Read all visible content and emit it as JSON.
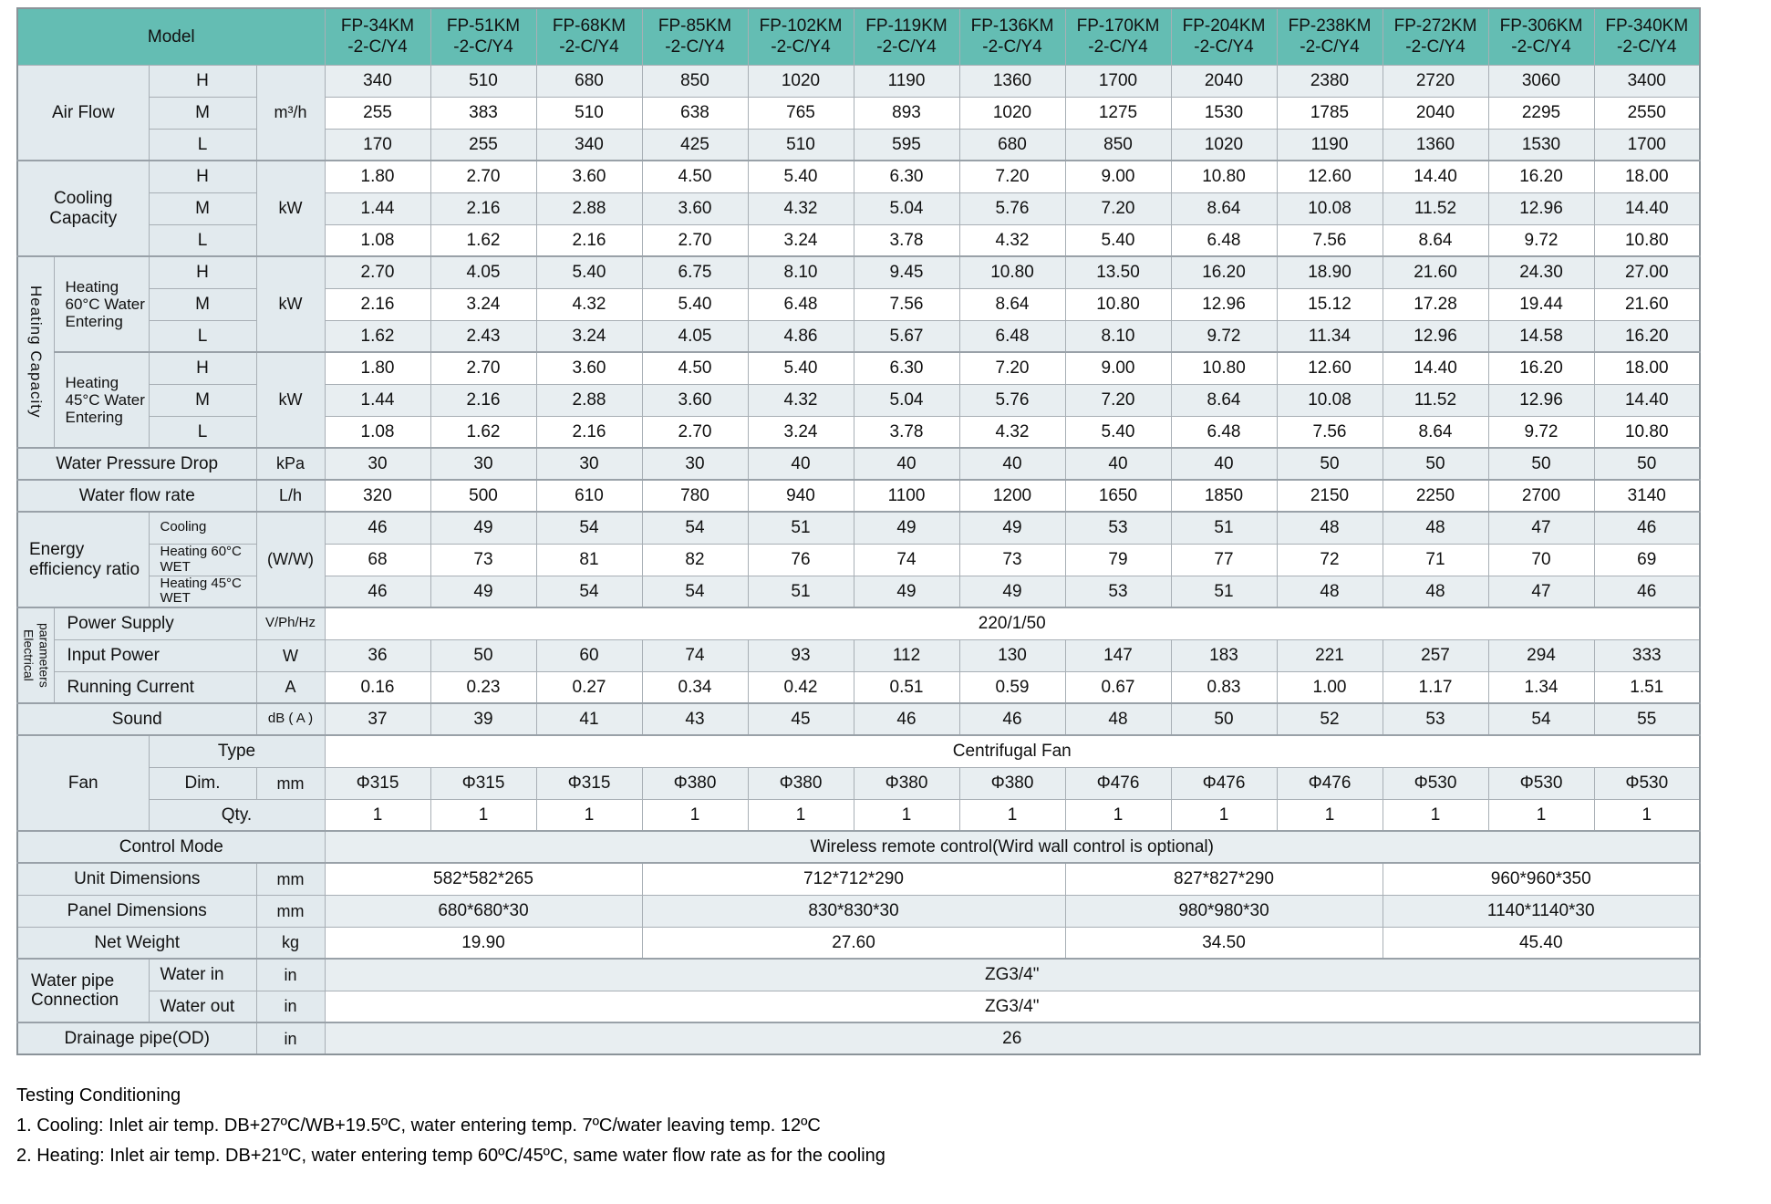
{
  "table": {
    "hml": [
      "H",
      "M",
      "L"
    ],
    "header": {
      "model_label": "Model",
      "model_suffix": "-2-C/Y4",
      "models": [
        "FP-34KM",
        "FP-51KM",
        "FP-68KM",
        "FP-85KM",
        "FP-102KM",
        "FP-119KM",
        "FP-136KM",
        "FP-170KM",
        "FP-204KM",
        "FP-238KM",
        "FP-272KM",
        "FP-306KM",
        "FP-340KM"
      ]
    },
    "air_flow": {
      "label": "Air Flow",
      "unit": "m³/h",
      "rows": {
        "H": [
          "340",
          "510",
          "680",
          "850",
          "1020",
          "1190",
          "1360",
          "1700",
          "2040",
          "2380",
          "2720",
          "3060",
          "3400"
        ],
        "M": [
          "255",
          "383",
          "510",
          "638",
          "765",
          "893",
          "1020",
          "1275",
          "1530",
          "1785",
          "2040",
          "2295",
          "2550"
        ],
        "L": [
          "170",
          "255",
          "340",
          "425",
          "510",
          "595",
          "680",
          "850",
          "1020",
          "1190",
          "1360",
          "1530",
          "1700"
        ]
      }
    },
    "cooling_capacity": {
      "label": "Cooling Capacity",
      "unit": "kW",
      "rows": {
        "H": [
          "1.80",
          "2.70",
          "3.60",
          "4.50",
          "5.40",
          "6.30",
          "7.20",
          "9.00",
          "10.80",
          "12.60",
          "14.40",
          "16.20",
          "18.00"
        ],
        "M": [
          "1.44",
          "2.16",
          "2.88",
          "3.60",
          "4.32",
          "5.04",
          "5.76",
          "7.20",
          "8.64",
          "10.08",
          "11.52",
          "12.96",
          "14.40"
        ],
        "L": [
          "1.08",
          "1.62",
          "2.16",
          "2.70",
          "3.24",
          "3.78",
          "4.32",
          "5.40",
          "6.48",
          "7.56",
          "8.64",
          "9.72",
          "10.80"
        ]
      }
    },
    "heating_capacity": {
      "label": "Heating Capacity",
      "h60": {
        "label": "Heating 60°C Water Entering",
        "unit": "kW",
        "rows": {
          "H": [
            "2.70",
            "4.05",
            "5.40",
            "6.75",
            "8.10",
            "9.45",
            "10.80",
            "13.50",
            "16.20",
            "18.90",
            "21.60",
            "24.30",
            "27.00"
          ],
          "M": [
            "2.16",
            "3.24",
            "4.32",
            "5.40",
            "6.48",
            "7.56",
            "8.64",
            "10.80",
            "12.96",
            "15.12",
            "17.28",
            "19.44",
            "21.60"
          ],
          "L": [
            "1.62",
            "2.43",
            "3.24",
            "4.05",
            "4.86",
            "5.67",
            "6.48",
            "8.10",
            "9.72",
            "11.34",
            "12.96",
            "14.58",
            "16.20"
          ]
        }
      },
      "h45": {
        "label": "Heating 45°C Water Entering",
        "unit": "kW",
        "rows": {
          "H": [
            "1.80",
            "2.70",
            "3.60",
            "4.50",
            "5.40",
            "6.30",
            "7.20",
            "9.00",
            "10.80",
            "12.60",
            "14.40",
            "16.20",
            "18.00"
          ],
          "M": [
            "1.44",
            "2.16",
            "2.88",
            "3.60",
            "4.32",
            "5.04",
            "5.76",
            "7.20",
            "8.64",
            "10.08",
            "11.52",
            "12.96",
            "14.40"
          ],
          "L": [
            "1.08",
            "1.62",
            "2.16",
            "2.70",
            "3.24",
            "3.78",
            "4.32",
            "5.40",
            "6.48",
            "7.56",
            "8.64",
            "9.72",
            "10.80"
          ]
        }
      }
    },
    "water_pressure_drop": {
      "label": "Water Pressure Drop",
      "unit": "kPa",
      "values": [
        "30",
        "30",
        "30",
        "30",
        "40",
        "40",
        "40",
        "40",
        "40",
        "50",
        "50",
        "50",
        "50"
      ]
    },
    "water_flow_rate": {
      "label": "Water flow rate",
      "unit": "L/h",
      "values": [
        "320",
        "500",
        "610",
        "780",
        "940",
        "1100",
        "1200",
        "1650",
        "1850",
        "2150",
        "2250",
        "2700",
        "3140"
      ]
    },
    "energy_efficiency_ratio": {
      "label": "Energy efficiency ratio",
      "unit": "(W/W)",
      "cooling": {
        "label": "Cooling",
        "values": [
          "46",
          "49",
          "54",
          "54",
          "51",
          "49",
          "49",
          "53",
          "51",
          "48",
          "48",
          "47",
          "46"
        ]
      },
      "heating60": {
        "label": "Heating 60°C WET",
        "values": [
          "68",
          "73",
          "81",
          "82",
          "76",
          "74",
          "73",
          "79",
          "77",
          "72",
          "71",
          "70",
          "69"
        ]
      },
      "heating45": {
        "label": "Heating 45°C WET",
        "values": [
          "46",
          "49",
          "54",
          "54",
          "51",
          "49",
          "49",
          "53",
          "51",
          "48",
          "48",
          "47",
          "46"
        ]
      }
    },
    "electrical": {
      "label": "Electrical parameters",
      "power_supply": {
        "label": "Power Supply",
        "unit": "V/Ph/Hz",
        "value": "220/1/50"
      },
      "input_power": {
        "label": "Input Power",
        "unit": "W",
        "values": [
          "36",
          "50",
          "60",
          "74",
          "93",
          "112",
          "130",
          "147",
          "183",
          "221",
          "257",
          "294",
          "333"
        ]
      },
      "running_current": {
        "label": "Running Current",
        "unit": "A",
        "values": [
          "0.16",
          "0.23",
          "0.27",
          "0.34",
          "0.42",
          "0.51",
          "0.59",
          "0.67",
          "0.83",
          "1.00",
          "1.17",
          "1.34",
          "1.51"
        ]
      }
    },
    "sound": {
      "label": "Sound",
      "unit": "dB ( A )",
      "values": [
        "37",
        "39",
        "41",
        "43",
        "45",
        "46",
        "46",
        "48",
        "50",
        "52",
        "53",
        "54",
        "55"
      ]
    },
    "fan": {
      "label": "Fan",
      "type": {
        "label": "Type",
        "value": "Centrifugal Fan"
      },
      "dim": {
        "label": "Dim.",
        "unit": "mm",
        "values": [
          "Φ315",
          "Φ315",
          "Φ315",
          "Φ380",
          "Φ380",
          "Φ380",
          "Φ380",
          "Φ476",
          "Φ476",
          "Φ476",
          "Φ530",
          "Φ530",
          "Φ530"
        ]
      },
      "qty": {
        "label": "Qty.",
        "values": [
          "1",
          "1",
          "1",
          "1",
          "1",
          "1",
          "1",
          "1",
          "1",
          "1",
          "1",
          "1",
          "1"
        ]
      }
    },
    "control_mode": {
      "label": "Control Mode",
      "value": "Wireless remote control(Wird wall control is optional)"
    },
    "unit_dimensions": {
      "label": "Unit Dimensions",
      "unit": "mm",
      "values": [
        "582*582*265",
        "712*712*290",
        "827*827*290",
        "960*960*350"
      ],
      "spans": [
        3,
        4,
        3,
        3
      ]
    },
    "panel_dimensions": {
      "label": "Panel Dimensions",
      "unit": "mm",
      "values": [
        "680*680*30",
        "830*830*30",
        "980*980*30",
        "1140*1140*30"
      ],
      "spans": [
        3,
        4,
        3,
        3
      ]
    },
    "net_weight": {
      "label": "Net Weight",
      "unit": "kg",
      "values": [
        "19.90",
        "27.60",
        "34.50",
        "45.40"
      ],
      "spans": [
        3,
        4,
        3,
        3
      ]
    },
    "water_pipe": {
      "label": "Water pipe Connection",
      "water_in": {
        "label": "Water in",
        "unit": "in",
        "value": "ZG3/4\""
      },
      "water_out": {
        "label": "Water out",
        "unit": "in",
        "value": "ZG3/4\""
      }
    },
    "drainage": {
      "label": "Drainage pipe(OD)",
      "unit": "in",
      "value": "26"
    }
  },
  "footer": {
    "title": "Testing Conditioning",
    "notes": [
      "1. Cooling: Inlet air temp. DB+27ºC/WB+19.5ºC, water entering temp. 7ºC/water leaving temp. 12ºC",
      "2. Heating: Inlet air temp. DB+21ºC, water entering temp 60ºC/45ºC, same water flow rate as for the cooling"
    ]
  },
  "colors": {
    "header_bg": "#64bdb3",
    "label_bg": "#e2eaee",
    "stripe_bg": "#e8eef1",
    "border": "#a8afb5"
  }
}
